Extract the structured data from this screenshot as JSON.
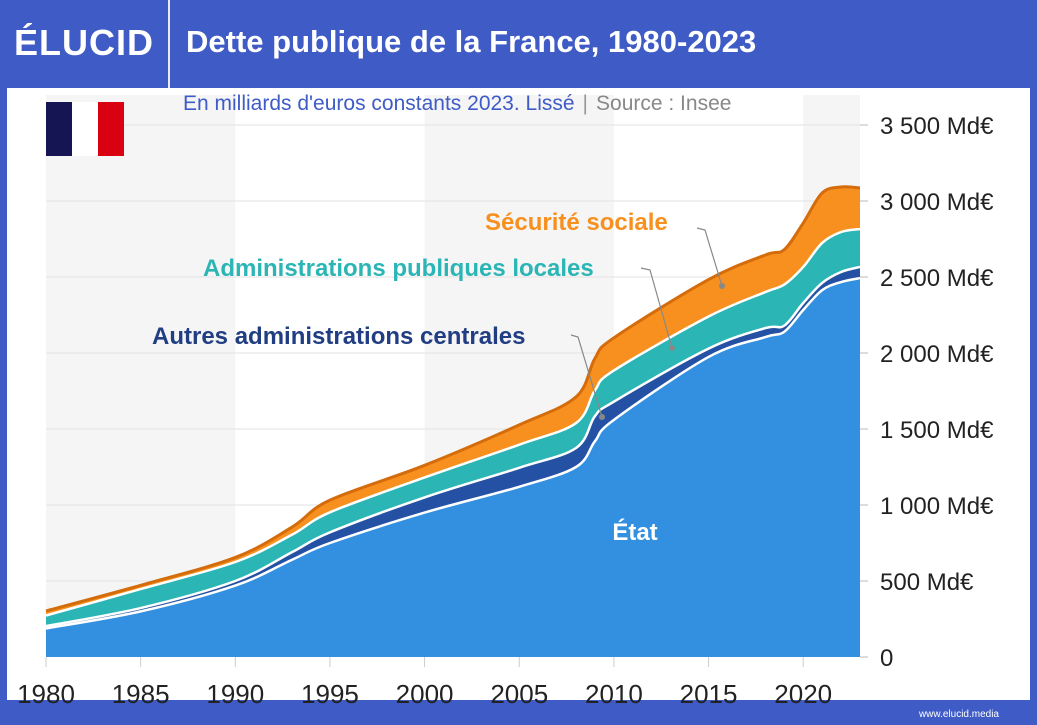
{
  "header": {
    "logo": "ÉLUCID",
    "title": "Dette publique de la France, 1980-2023"
  },
  "subtitle": {
    "text": "En milliards d'euros constants 2023. Lissé",
    "separator": "|",
    "source": "Source : Insee"
  },
  "flag": {
    "name": "france-flag",
    "colors": [
      "#161553",
      "#ffffff",
      "#d90012"
    ]
  },
  "footer": {
    "url": "www.elucid.media"
  },
  "chart_data": {
    "type": "area",
    "stacked": true,
    "title": "Dette publique de la France, 1980-2023",
    "ylim": [
      0,
      3500
    ],
    "xlim": [
      1980,
      2023
    ],
    "grid": true,
    "y_ticks": [
      0,
      500,
      1000,
      1500,
      2000,
      2500,
      3000,
      3500
    ],
    "y_tick_labels": [
      "0",
      "500 Md€",
      "1 000 Md€",
      "1 500 Md€",
      "2 000 Md€",
      "2 500 Md€",
      "3 000 Md€",
      "3 500 Md€"
    ],
    "x_ticks": [
      1980,
      1985,
      1990,
      1995,
      2000,
      2005,
      2010,
      2015,
      2020
    ],
    "x_tick_labels": [
      "1980",
      "1985",
      "1990",
      "1995",
      "2000",
      "2005",
      "2010",
      "2015",
      "2020"
    ],
    "x": [
      1980,
      1985,
      1990,
      1993,
      1995,
      2000,
      2005,
      2008,
      2009,
      2010,
      2015,
      2018,
      2019,
      2020,
      2021,
      2022,
      2023
    ],
    "series": [
      {
        "name": "État",
        "color": "#3390e0",
        "values": [
          188,
          300,
          470,
          640,
          750,
          950,
          1120,
          1250,
          1420,
          1560,
          1974,
          2105,
          2140,
          2283,
          2414,
          2467,
          2493
        ]
      },
      {
        "name": "Autres administrations centrales",
        "color": "#2451a3",
        "values": [
          15,
          22,
          30,
          50,
          70,
          100,
          125,
          125,
          165,
          120,
          55,
          59,
          40,
          46,
          47,
          66,
          73
        ]
      },
      {
        "name": "Administrations publiques locales",
        "color": "#2bb5b5",
        "values": [
          70,
          125,
          125,
          115,
          132,
          131,
          152,
          164,
          170,
          205,
          211,
          237,
          270,
          237,
          263,
          263,
          250
        ]
      },
      {
        "name": "Sécurité sociale",
        "color": "#f7901e",
        "values": [
          30,
          25,
          30,
          50,
          80,
          80,
          130,
          172,
          210,
          215,
          243,
          244,
          230,
          289,
          329,
          296,
          270
        ]
      }
    ],
    "legend": "inline labels",
    "background_bands": "alternating by decade"
  }
}
